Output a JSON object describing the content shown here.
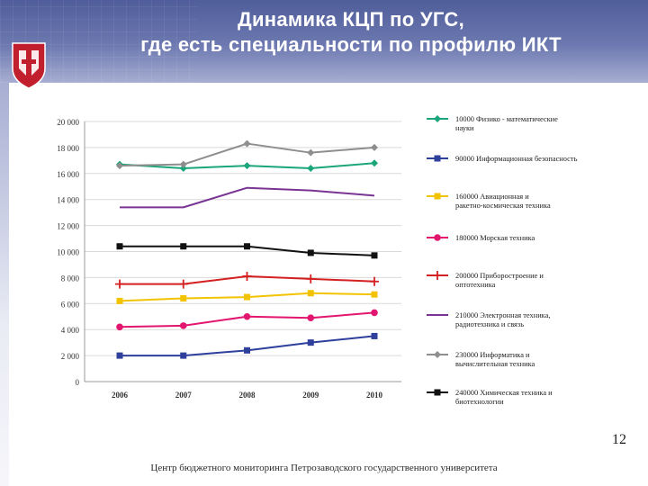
{
  "header": {
    "title_line1": "Динамика КЦП по УГС,",
    "title_line2": "где есть специальности по  профилю ИКТ"
  },
  "colors": {
    "header": "#5b68a4",
    "logo": "#c21f2e"
  },
  "chart_data": {
    "type": "line",
    "title": "",
    "xlabel": "",
    "ylabel": "",
    "categories": [
      "2006",
      "2007",
      "2008",
      "2009",
      "2010"
    ],
    "ylim": [
      0,
      20000
    ],
    "y_ticks": [
      "0",
      "2 000",
      "4 000",
      "6 000",
      "8 000",
      "10 000",
      "12 000",
      "14 000",
      "16 000",
      "18 000",
      "20 000"
    ],
    "y_tick_values": [
      0,
      2000,
      4000,
      6000,
      8000,
      10000,
      12000,
      14000,
      16000,
      18000,
      20000
    ],
    "grid": true,
    "legend_position": "right",
    "series": [
      {
        "name": "10000 Физико - математические науки",
        "color": "#1aa67a",
        "marker": "diamond",
        "values": [
          16700,
          16400,
          16600,
          16400,
          16800
        ]
      },
      {
        "name": "90000 Информационная безопасность",
        "color": "#2e3f9c",
        "marker": "square",
        "values": [
          2000,
          2000,
          2400,
          3000,
          3500
        ]
      },
      {
        "name": "160000 Авиационная и ракетно-космическая техника",
        "color": "#f2c300",
        "marker": "square",
        "values": [
          6200,
          6400,
          6500,
          6800,
          6700
        ]
      },
      {
        "name": "180000 Морская техника",
        "color": "#e3166f",
        "marker": "circle",
        "values": [
          4200,
          4300,
          5000,
          4900,
          5300
        ]
      },
      {
        "name": "200000 Приборостроение и оптотехника",
        "color": "#d42020",
        "marker": "plus",
        "values": [
          7500,
          7500,
          8100,
          7900,
          7700
        ]
      },
      {
        "name": "210000 Электронная техника, радиотехника и связь",
        "color": "#7a3594",
        "marker": "none",
        "values": [
          13400,
          13400,
          14900,
          14700,
          14300
        ]
      },
      {
        "name": "230000 Информатика и вычислительная техника",
        "color": "#8e8e8e",
        "marker": "diamond",
        "values": [
          16600,
          16700,
          18300,
          17600,
          18000
        ]
      },
      {
        "name": "240000 Химическая техника и биотехнологии",
        "color": "#111111",
        "marker": "square",
        "values": [
          10400,
          10400,
          10400,
          9900,
          9700
        ]
      }
    ]
  },
  "page_number": "12",
  "footer": "Центр бюджетного мониторинга Петрозаводского государственного университета"
}
